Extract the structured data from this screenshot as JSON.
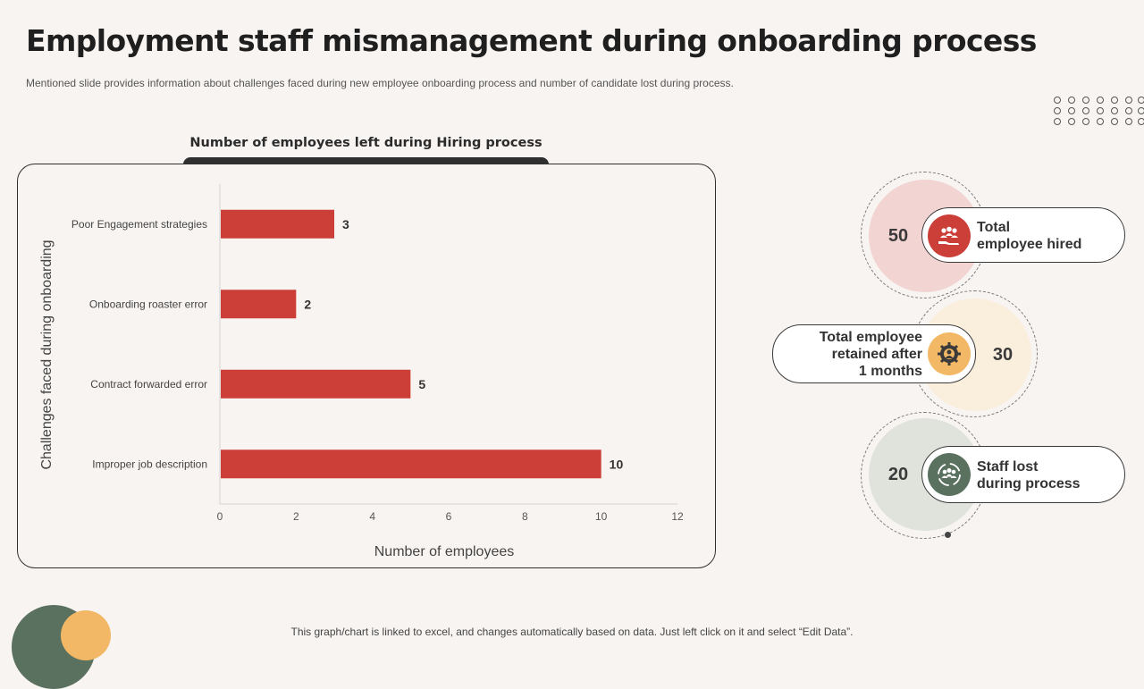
{
  "header": {
    "title": "Employment staff mismanagement during onboarding process",
    "subtitle": "Mentioned slide provides information about challenges faced during new employee onboarding process and number of candidate lost during process."
  },
  "chart_data": {
    "type": "bar",
    "orientation": "horizontal",
    "title": "Number of employees left during Hiring process",
    "categories": [
      "Poor Engagement strategies",
      "Onboarding roaster error",
      "Contract forwarded error",
      "Improper job description"
    ],
    "values": [
      3,
      2,
      5,
      10
    ],
    "xlabel": "Number of employees",
    "ylabel": "Challenges faced during onboarding",
    "xlim": [
      0,
      12
    ],
    "xticks": [
      0,
      2,
      4,
      6,
      8,
      10,
      12
    ],
    "bar_color": "#cc3e38",
    "grid": false
  },
  "stats": [
    {
      "value": "50",
      "label": "Total\nemployee hired",
      "icon": "hand-people-icon",
      "color": "#cc3e38",
      "blob": "#f2d5d2"
    },
    {
      "value": "30",
      "label": "Total employee\nretained after\n1 months",
      "icon": "gear-people-icon",
      "color": "#f2b865",
      "blob": "#faeedd"
    },
    {
      "value": "20",
      "label": "Staff lost\nduring process",
      "icon": "people-arrows-icon",
      "color": "#5a7160",
      "blob": "#dfe3dc"
    }
  ],
  "footer": {
    "note": "This graph/chart is linked to excel, and changes automatically based on data. Just left click on it and select “Edit Data”."
  }
}
